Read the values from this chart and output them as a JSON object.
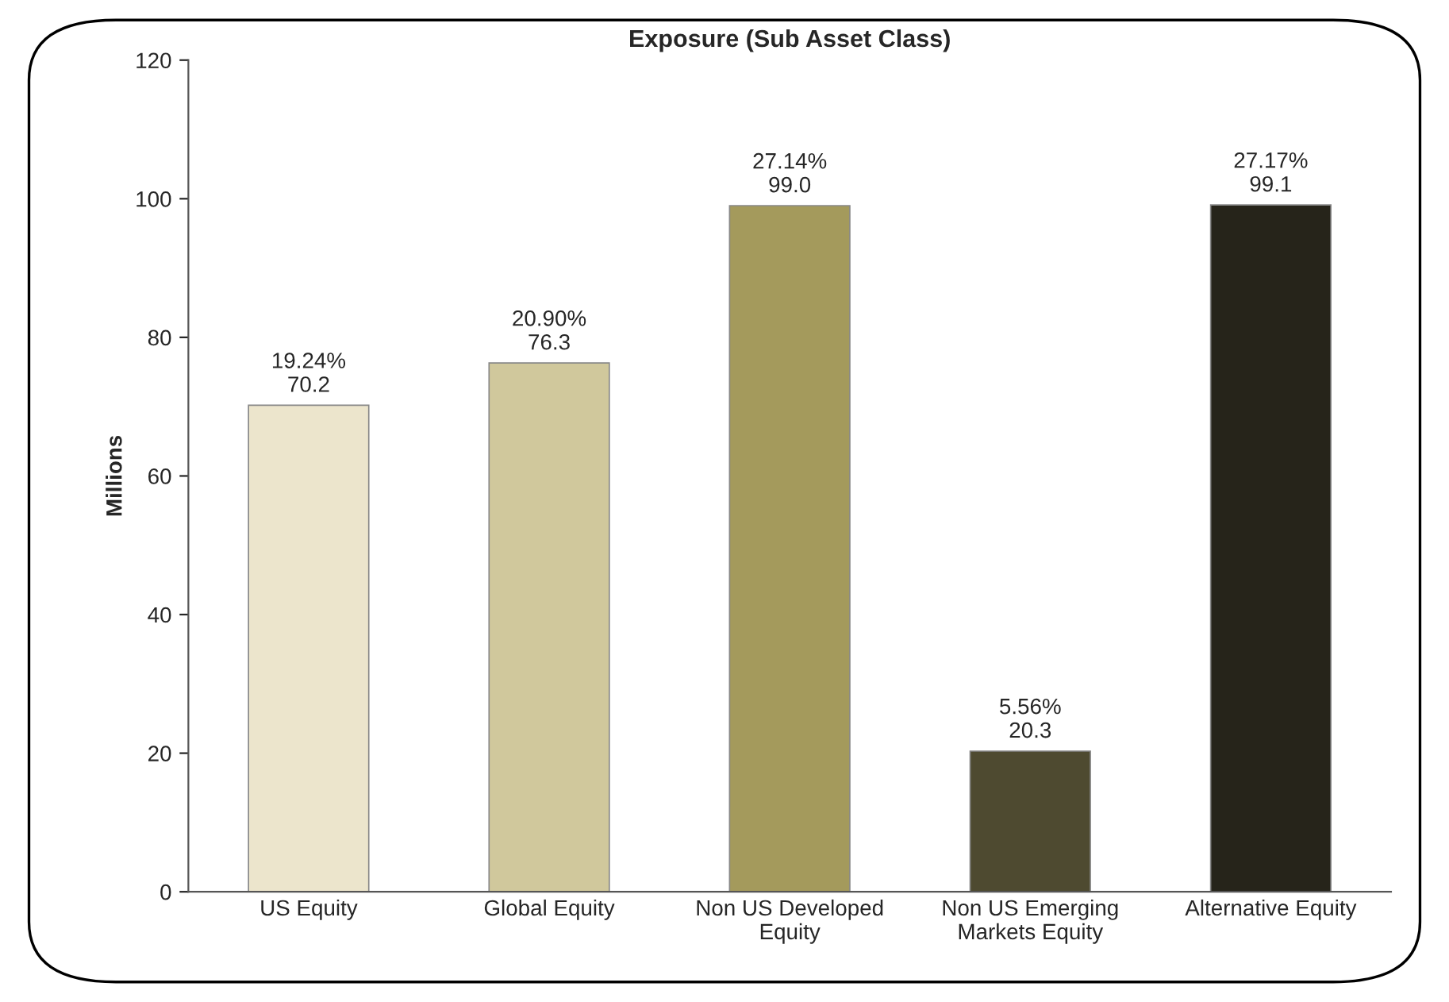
{
  "chart_data": {
    "type": "bar",
    "title": "Exposure (Sub Asset Class)",
    "ylabel": "Millions",
    "categories": [
      "US Equity",
      "Global Equity",
      "Non US Developed\nEquity",
      "Non US Emerging\nMarkets Equity",
      "Alternative Equity"
    ],
    "values": [
      70.2,
      76.3,
      99.0,
      20.3,
      99.1
    ],
    "colors": [
      "#ece5cc",
      "#d0c89c",
      "#a49a5c",
      "#4e4a30",
      "#26241a"
    ],
    "value_labels": [
      "19.24%\n70.2",
      "20.90%\n76.3",
      "27.14%\n99.0",
      "5.56%\n20.3",
      "27.17%\n99.1"
    ],
    "ylim": [
      0,
      120
    ],
    "yticks": [
      0,
      20,
      40,
      60,
      80,
      100,
      120
    ],
    "grid": false,
    "legend": false
  }
}
